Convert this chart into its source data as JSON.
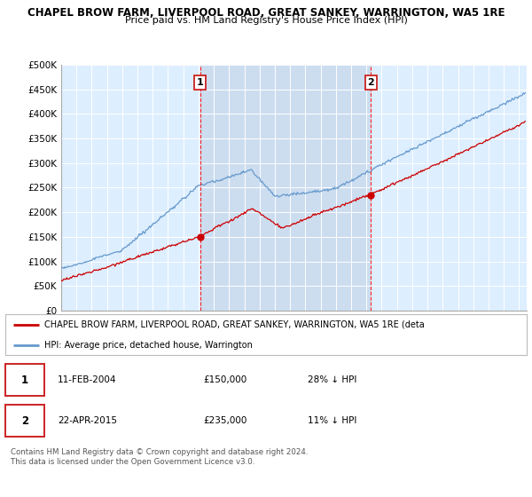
{
  "title_line1": "CHAPEL BROW FARM, LIVERPOOL ROAD, GREAT SANKEY, WARRINGTON, WA5 1RE",
  "title_line2": "Price paid vs. HM Land Registry's House Price Index (HPI)",
  "ylim": [
    0,
    500000
  ],
  "yticks": [
    0,
    50000,
    100000,
    150000,
    200000,
    250000,
    300000,
    350000,
    400000,
    450000,
    500000
  ],
  "ytick_labels": [
    "£0",
    "£50K",
    "£100K",
    "£150K",
    "£200K",
    "£250K",
    "£300K",
    "£350K",
    "£400K",
    "£450K",
    "£500K"
  ],
  "plot_bg_color": "#ddeeff",
  "shade_color": "#ccddf0",
  "grid_color": "#cccccc",
  "hpi_color": "#6699cc",
  "price_color": "#cc0000",
  "sale1_year": 2004.1,
  "sale1_price": 150000,
  "sale2_year": 2015.3,
  "sale2_price": 235000,
  "sale1_label": "11-FEB-2004",
  "sale2_label": "22-APR-2015",
  "sale1_amt": "£150,000",
  "sale2_amt": "£235,000",
  "sale1_pct": "28% ↓ HPI",
  "sale2_pct": "11% ↓ HPI",
  "legend_property": "CHAPEL BROW FARM, LIVERPOOL ROAD, GREAT SANKEY, WARRINGTON, WA5 1RE (deta",
  "legend_hpi": "HPI: Average price, detached house, Warrington",
  "footnote": "Contains HM Land Registry data © Crown copyright and database right 2024.\nThis data is licensed under the Open Government Licence v3.0.",
  "xstart": 1995,
  "xend": 2025.5
}
